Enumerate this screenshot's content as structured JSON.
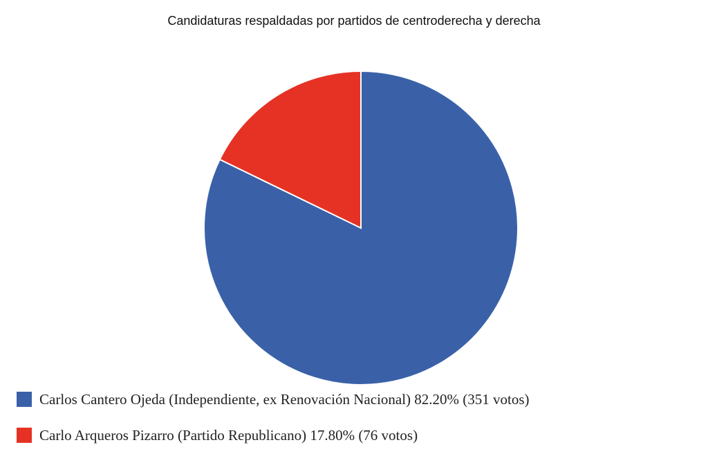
{
  "chart_data": {
    "type": "pie",
    "title": "Candidaturas respaldadas por partidos de centroderecha y derecha",
    "slices": [
      {
        "name": "Carlos Cantero Ojeda (Independiente, ex Renovación Nacional)",
        "percent": 82.2,
        "votes": 351,
        "color": "#3A61A8",
        "legend": "Carlos Cantero Ojeda (Independiente, ex Renovación Nacional) 82.20% (351 votos)"
      },
      {
        "name": "Carlo Arqueros Pizarro (Partido Republicano)",
        "percent": 17.8,
        "votes": 76,
        "color": "#E53224",
        "legend": "Carlo Arqueros Pizarro (Partido Republicano) 17.80% (76 votos)"
      }
    ],
    "legend_position": "bottom-left"
  }
}
